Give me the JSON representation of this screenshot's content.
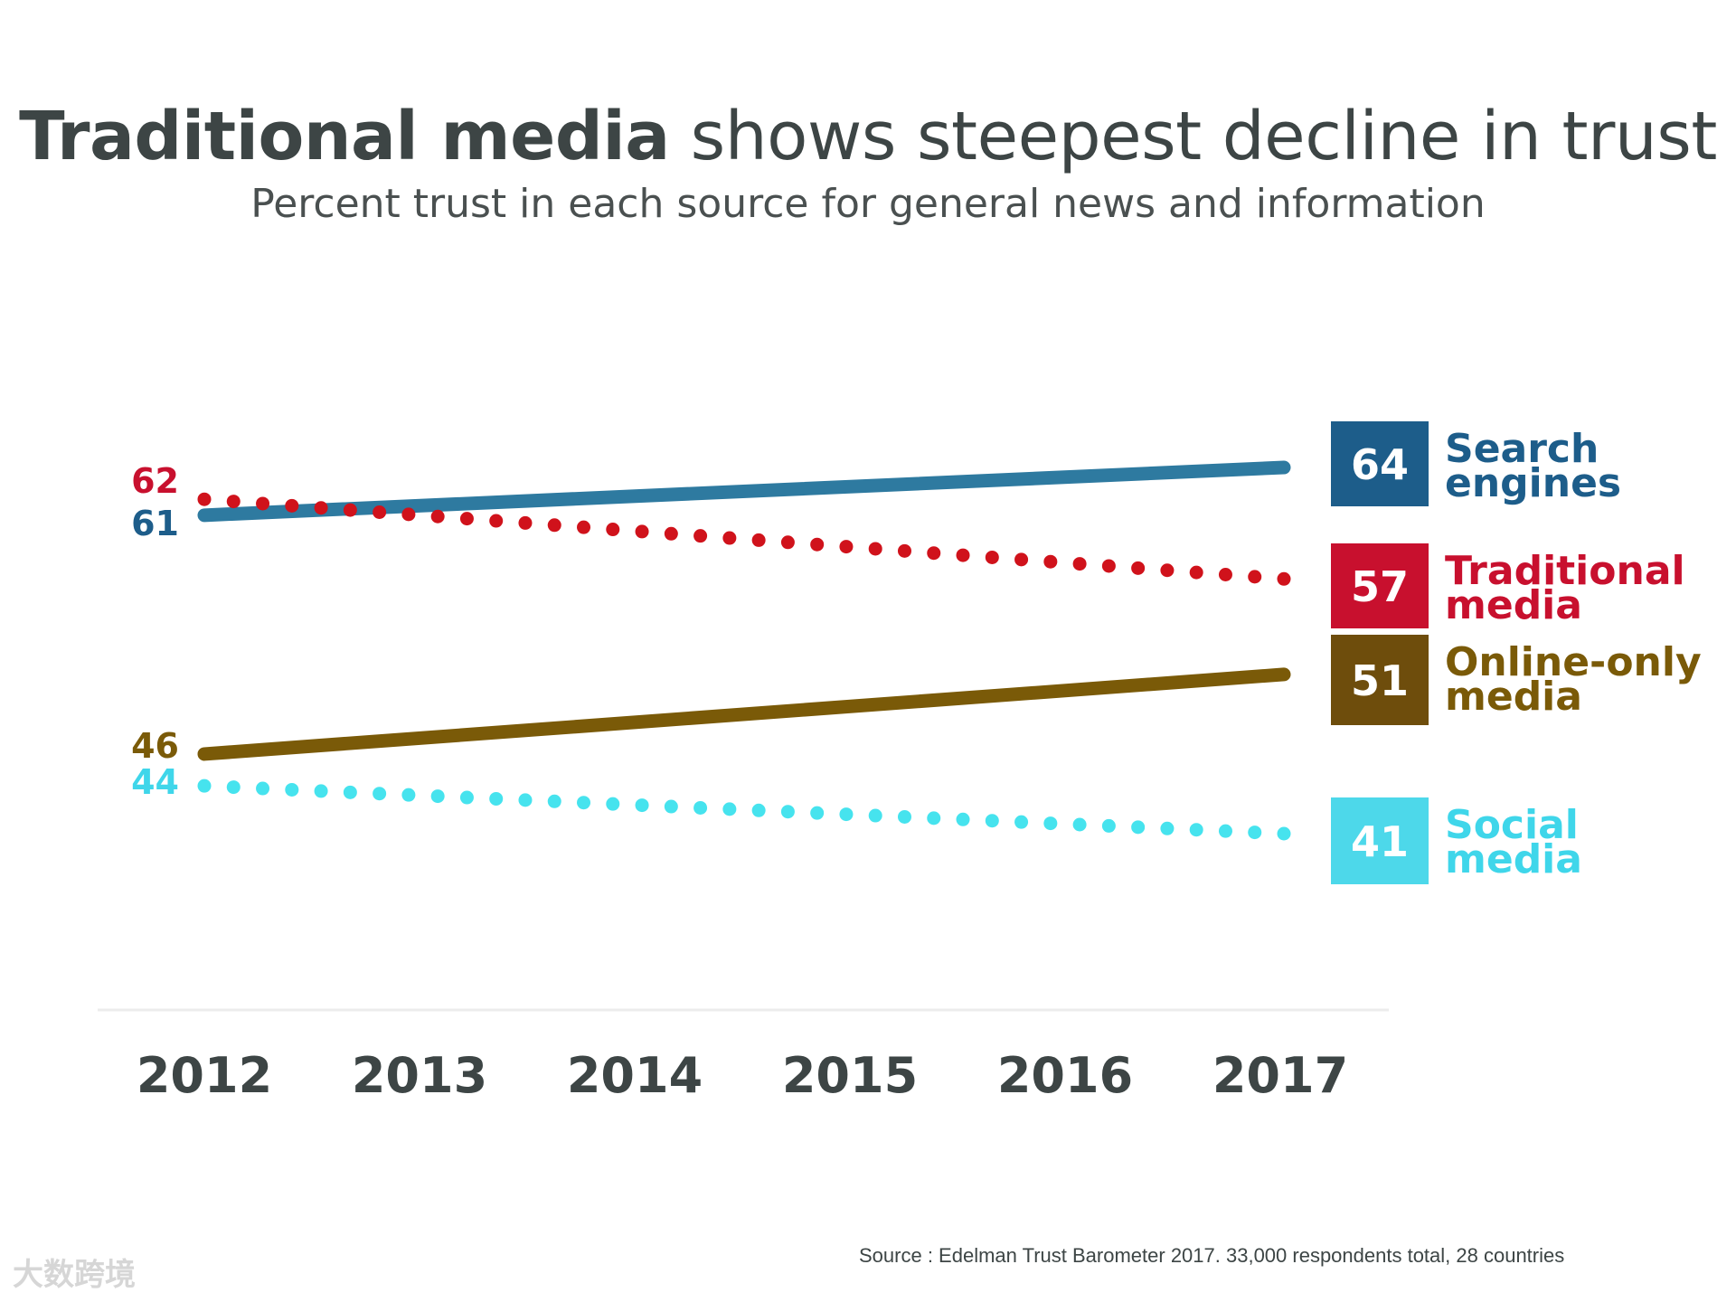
{
  "title": {
    "bold": "Traditional media",
    "rest": "shows steepest decline in trust"
  },
  "subtitle": "Percent trust in each source for general news and information",
  "source": "Source : Edelman Trust Barometer 2017. 33,000 respondents total, 28 countries",
  "watermark": "大数跨境",
  "chart_data": {
    "type": "line",
    "title": "Traditional media shows steepest decline in trust",
    "subtitle": "Percent trust in each source for general news and information",
    "x": [
      "2012",
      "2013",
      "2014",
      "2015",
      "2016",
      "2017"
    ],
    "ylim": [
      40,
      65
    ],
    "grid": false,
    "legend": "right",
    "series": [
      {
        "name": "Search engines",
        "label_lines": [
          "Search",
          "engines"
        ],
        "start": 61,
        "end": 64,
        "values": [
          61,
          61.6,
          62.2,
          62.8,
          63.4,
          64
        ],
        "color": "#2e7aa0",
        "box_color": "#1d5d8a",
        "label_color": "#1d5d8a",
        "style": "solid"
      },
      {
        "name": "Traditional media",
        "label_lines": [
          "Traditional",
          "media"
        ],
        "start": 62,
        "end": 57,
        "values": [
          62,
          61,
          60,
          59,
          58,
          57
        ],
        "color": "#d0121b",
        "box_color": "#c8102e",
        "label_color": "#c8102e",
        "style": "dotted"
      },
      {
        "name": "Online-only media",
        "label_lines": [
          "Online-only",
          "media"
        ],
        "start": 46,
        "end": 51,
        "values": [
          46,
          47,
          48,
          49,
          50,
          51
        ],
        "color": "#7a5a08",
        "box_color": "#6e4d0c",
        "label_color": "#7a5a08",
        "style": "solid"
      },
      {
        "name": "Social media",
        "label_lines": [
          "Social",
          "media"
        ],
        "start": 44,
        "end": 41,
        "values": [
          44,
          43.4,
          42.8,
          42.2,
          41.6,
          41
        ],
        "color": "#46e3ee",
        "box_color": "#4dd8ea",
        "label_color": "#3fd6ea",
        "style": "dotted"
      }
    ]
  }
}
